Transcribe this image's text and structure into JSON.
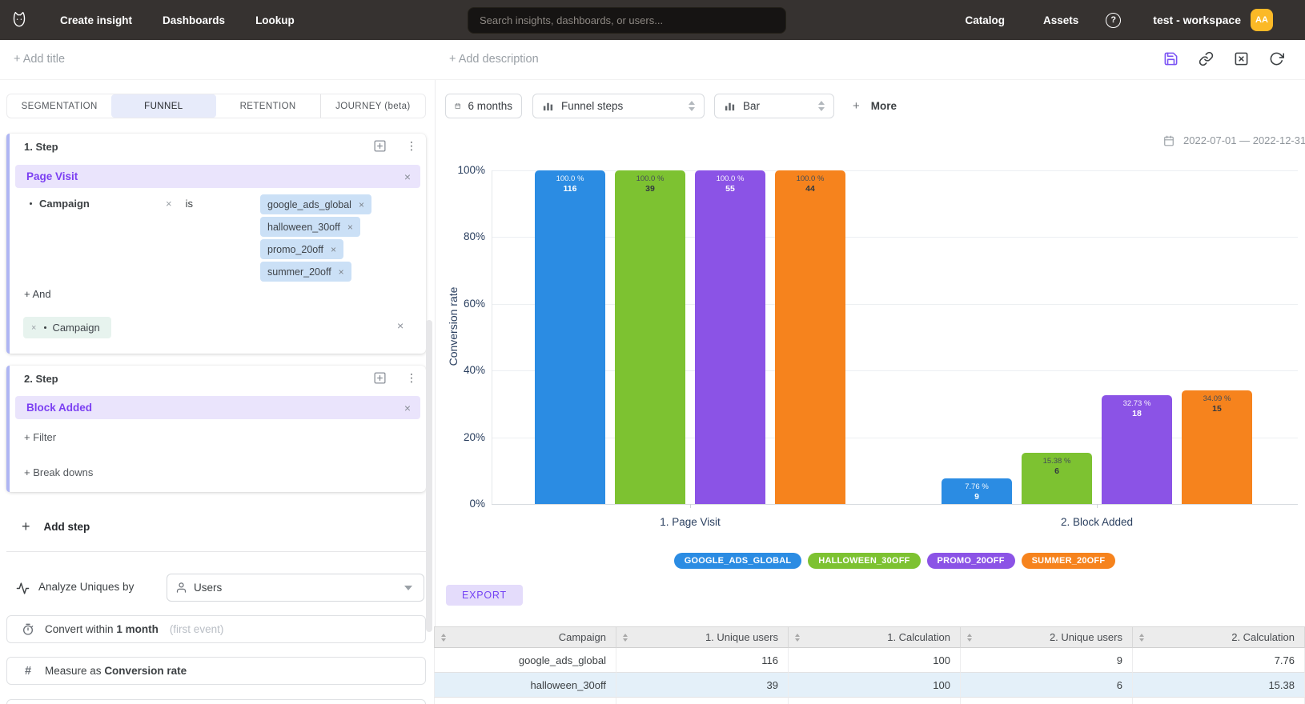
{
  "icons": {
    "close": "×",
    "plus": "+",
    "kebab": "⋮",
    "help": "?",
    "hash": "#"
  },
  "nav": {
    "items": [
      {
        "label": "Create insight"
      },
      {
        "label": "Dashboards"
      },
      {
        "label": "Lookup"
      }
    ],
    "search_placeholder": "Search insights, dashboards, or users...",
    "catalog": "Catalog",
    "assets": "Assets",
    "workspace": "test - workspace",
    "avatar_initials": "AA",
    "avatar_color": "#FBB927"
  },
  "toolbar": {
    "add_title": "+ Add title",
    "add_description": "+ Add description"
  },
  "query_tabs": [
    {
      "label": "SEGMENTATION",
      "active": false
    },
    {
      "label": "FUNNEL",
      "active": true
    },
    {
      "label": "RETENTION",
      "active": false
    },
    {
      "label": "JOURNEY (beta)",
      "active": false
    }
  ],
  "steps": [
    {
      "header": "1. Step",
      "event": "Page Visit",
      "filters": [
        {
          "property": "Campaign",
          "operator": "is",
          "values": [
            "google_ads_global",
            "halloween_30off",
            "promo_20off",
            "summer_20off"
          ]
        }
      ],
      "add_condition_label": "+ And",
      "pending_filter": {
        "property": "Campaign"
      }
    },
    {
      "header": "2. Step",
      "event": "Block Added",
      "add_filter_label": "+ Filter",
      "add_breakdown_label": "+ Break downs"
    }
  ],
  "add_step_label": "Add step",
  "analyze": {
    "label": "Analyze Uniques by",
    "selected_value": "Users",
    "convert_prefix": "Convert within",
    "convert_value": "1 month",
    "convert_hint": "(first event)",
    "measure_prefix": "Measure as",
    "measure_value": "Conversion rate"
  },
  "chart_controls": {
    "date_range_button": "6 months",
    "breakdown_select": "Funnel steps",
    "chart_type_select": "Bar",
    "more_plus": "+",
    "more_label": "More",
    "date_range_text": "2022-07-01 — 2022-12-31"
  },
  "chart_data": {
    "type": "bar",
    "title": "",
    "ylabel": "Conversion rate",
    "xlabel": "",
    "ylim": [
      0,
      100
    ],
    "yticks": [
      0,
      20,
      40,
      60,
      80,
      100
    ],
    "ytick_labels": [
      "0%",
      "20%",
      "40%",
      "60%",
      "80%",
      "100%"
    ],
    "categories": [
      "1. Page Visit",
      "2. Block Added"
    ],
    "series": [
      {
        "name": "GOOGLE_ADS_GLOBAL",
        "color": "#2B8CE3",
        "label_style": "light",
        "values": [
          100.0,
          7.76
        ],
        "counts": [
          116,
          9
        ],
        "value_labels": [
          "100.0 %",
          "7.76 %"
        ]
      },
      {
        "name": "HALLOWEEN_30OFF",
        "color": "#7DC231",
        "label_style": "dark",
        "values": [
          100.0,
          15.38
        ],
        "counts": [
          39,
          6
        ],
        "value_labels": [
          "100.0 %",
          "15.38 %"
        ]
      },
      {
        "name": "PROMO_20OFF",
        "color": "#8B53E6",
        "label_style": "light",
        "values": [
          100.0,
          32.73
        ],
        "counts": [
          55,
          18
        ],
        "value_labels": [
          "100.0 %",
          "32.73 %"
        ]
      },
      {
        "name": "SUMMER_20OFF",
        "color": "#F6831D",
        "label_style": "dark",
        "values": [
          100.0,
          34.09
        ],
        "counts": [
          44,
          15
        ],
        "value_labels": [
          "100.0 %",
          "34.09 %"
        ]
      }
    ],
    "grid": true,
    "legend_position": "bottom"
  },
  "export_label": "EXPORT",
  "table": {
    "columns": [
      "Campaign",
      "1. Unique users",
      "1. Calculation",
      "2. Unique users",
      "2. Calculation"
    ],
    "rows": [
      {
        "cells": [
          "google_ads_global",
          "116",
          "100",
          "9",
          "7.76"
        ],
        "highlighted": false
      },
      {
        "cells": [
          "halloween_30off",
          "39",
          "100",
          "6",
          "15.38"
        ],
        "highlighted": true
      }
    ]
  }
}
